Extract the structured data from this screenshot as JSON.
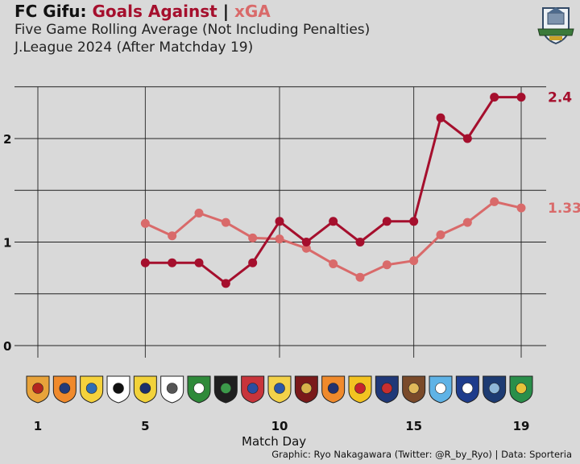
{
  "header": {
    "team": "FC Gifu:",
    "ga_label": "Goals Against",
    "sep": "|",
    "xga_label": "xGA",
    "subtitle": "Five Game Rolling Average (Not Including Penalties)",
    "subtitle2": "J.League 2024 (After Matchday 19)"
  },
  "footer": "Graphic: Ryo Nakagawara (Twitter: @R_by_Ryo) | Data: Sporteria",
  "colors": {
    "ga": "#a50f2d",
    "xga": "#d96a6a",
    "grid": "#222222",
    "crest_fill": "#f2efe6"
  },
  "crests": [
    "red-yellow-crest-icon",
    "orange-navy-crest-icon",
    "blue-gold-crest-icon",
    "black-white-crest-icon",
    "yellow-navy-crest-icon",
    "white-bird-crest-icon",
    "green-crest-icon",
    "black-green-crest-icon",
    "red-blue-crest-icon",
    "blue-yellow-crest-icon",
    "fleur-de-lis-crest-icon",
    "orange-navy-crest-icon",
    "gold-star-crest-icon",
    "navy-red-crest-icon",
    "brown-crest-icon",
    "sky-blue-crest-icon",
    "navy-white-crest-icon",
    "navy-bird-crest-icon",
    "green-gold-crest-icon"
  ],
  "chart_data": {
    "type": "line",
    "xlabel": "Match Day",
    "ylabel": "",
    "xlim": [
      0.5,
      19.5
    ],
    "ylim": [
      0,
      2.45
    ],
    "x_ticks": [
      1,
      5,
      10,
      15,
      19
    ],
    "y_ticks": [
      0,
      1,
      2
    ],
    "grid": true,
    "series": [
      {
        "name": "Goals Against",
        "x": [
          5,
          6,
          7,
          8,
          9,
          10,
          11,
          12,
          13,
          14,
          15,
          16,
          17,
          18,
          19
        ],
        "values": [
          0.8,
          0.8,
          0.8,
          0.6,
          0.8,
          1.2,
          1.0,
          1.2,
          1.0,
          1.2,
          1.2,
          2.2,
          2.0,
          2.4,
          2.4
        ],
        "end_label": "2.4"
      },
      {
        "name": "xGA",
        "x": [
          5,
          6,
          7,
          8,
          9,
          10,
          11,
          12,
          13,
          14,
          15,
          16,
          17,
          18,
          19
        ],
        "values": [
          1.18,
          1.06,
          1.28,
          1.19,
          1.04,
          1.03,
          0.94,
          0.79,
          0.66,
          0.78,
          0.82,
          1.07,
          1.19,
          1.39,
          1.33
        ],
        "end_label": "1.33"
      }
    ]
  }
}
